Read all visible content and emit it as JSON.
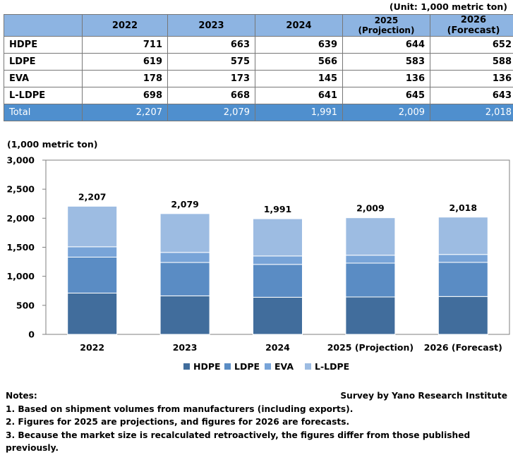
{
  "unit_label": "(Unit: 1,000 metric ton)",
  "table": {
    "header": [
      "",
      "2022",
      "2023",
      "2024",
      "2025 (Projection)",
      "2026 (Forecast)"
    ],
    "rows": [
      {
        "label": "HDPE",
        "values": [
          "711",
          "663",
          "639",
          "644",
          "652"
        ]
      },
      {
        "label": "LDPE",
        "values": [
          "619",
          "575",
          "566",
          "583",
          "588"
        ]
      },
      {
        "label": "EVA",
        "values": [
          "178",
          "173",
          "145",
          "136",
          "136"
        ]
      },
      {
        "label": "L-LDPE",
        "values": [
          "698",
          "668",
          "641",
          "645",
          "643"
        ]
      }
    ],
    "total": {
      "label": "Total",
      "values": [
        "2,207",
        "2,079",
        "1,991",
        "2,009",
        "2,018"
      ]
    }
  },
  "chart_data": {
    "type": "bar",
    "stacked": true,
    "ylabel": "(1,000 metric ton)",
    "ylim": [
      0,
      3000
    ],
    "yticks": [
      0,
      500,
      1000,
      1500,
      2000,
      2500,
      3000
    ],
    "ytick_labels": [
      "0",
      "500",
      "1,000",
      "1,500",
      "2,000",
      "2,500",
      "3,000"
    ],
    "grid": false,
    "legend_position": "bottom",
    "categories": [
      "2022",
      "2023",
      "2024",
      "2025 (Projection)",
      "2026 (Forecast)"
    ],
    "series": [
      {
        "name": "HDPE",
        "color": "#416d9c",
        "values": [
          711,
          663,
          639,
          644,
          652
        ]
      },
      {
        "name": "LDPE",
        "color": "#5a8cc4",
        "values": [
          619,
          575,
          566,
          583,
          588
        ]
      },
      {
        "name": "EVA",
        "color": "#78a4d8",
        "values": [
          178,
          173,
          145,
          136,
          136
        ]
      },
      {
        "name": "L-LDPE",
        "color": "#9dbce2",
        "values": [
          698,
          668,
          641,
          645,
          643
        ]
      }
    ],
    "totals": [
      2207,
      2079,
      1991,
      2009,
      2018
    ],
    "total_labels": [
      "2,207",
      "2,079",
      "1,991",
      "2,009",
      "2,018"
    ]
  },
  "notes": {
    "heading": "Notes:",
    "items": [
      "1. Based on shipment volumes from manufacturers (including exports).",
      "2. Figures for 2025 are projections, and figures for 2026 are forecasts.",
      "3. Because the market size is recalculated retroactively, the figures differ from those published previously."
    ]
  },
  "source": "Survey by Yano Research Institute"
}
